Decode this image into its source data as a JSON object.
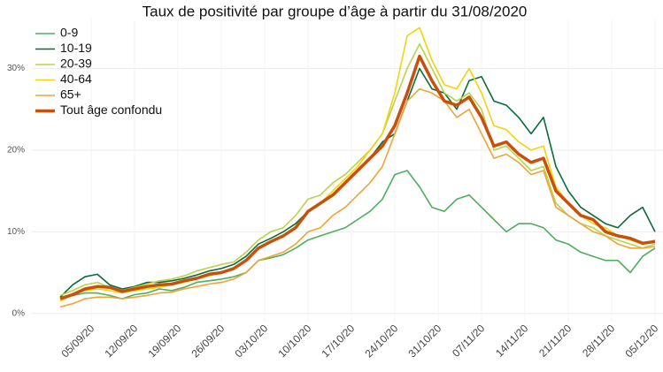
{
  "chart_data": {
    "type": "line",
    "title": "Taux de positivité par groupe d’âge à partir du 31/08/2020",
    "x": [
      "31/08/20",
      "02/09/20",
      "04/09/20",
      "06/09/20",
      "08/09/20",
      "10/09/20",
      "12/09/20",
      "14/09/20",
      "16/09/20",
      "18/09/20",
      "20/09/20",
      "22/09/20",
      "24/09/20",
      "26/09/20",
      "28/09/20",
      "30/09/20",
      "02/10/20",
      "04/10/20",
      "06/10/20",
      "08/10/20",
      "10/10/20",
      "12/10/20",
      "14/10/20",
      "16/10/20",
      "18/10/20",
      "20/10/20",
      "22/10/20",
      "24/10/20",
      "26/10/20",
      "28/10/20",
      "30/10/20",
      "01/11/20",
      "03/11/20",
      "05/11/20",
      "07/11/20",
      "09/11/20",
      "11/11/20",
      "13/11/20",
      "15/11/20",
      "17/11/20",
      "19/11/20",
      "21/11/20",
      "23/11/20",
      "25/11/20",
      "27/11/20",
      "29/11/20",
      "01/12/20",
      "03/12/20",
      "05/12/20"
    ],
    "series": [
      {
        "name": "0-9",
        "color": "#4daf5c",
        "width": 1.6,
        "values": [
          2,
          2.2,
          2.5,
          2.5,
          2.2,
          1.8,
          2.3,
          2.5,
          3,
          2.8,
          3.2,
          3.8,
          4,
          4.2,
          4.5,
          5,
          6.5,
          6.8,
          7.2,
          8,
          9,
          9.5,
          10,
          10.5,
          11.5,
          12.5,
          14,
          17,
          17.5,
          15.5,
          13,
          12.5,
          14,
          14.5,
          13,
          11.5,
          10,
          11,
          11,
          10.5,
          9,
          8.5,
          7.5,
          7,
          6.5,
          6.5,
          5,
          7,
          8
        ]
      },
      {
        "name": "10-19",
        "color": "#0b6b3a",
        "width": 1.6,
        "values": [
          2,
          3.5,
          4.5,
          4.8,
          3.5,
          3,
          3.3,
          3.8,
          3.8,
          4,
          4.3,
          4.7,
          5.2,
          5.5,
          6,
          7,
          8.5,
          9.2,
          10,
          11,
          12.5,
          13.5,
          14.5,
          16,
          17.5,
          19,
          21,
          22,
          26,
          30,
          27.5,
          27,
          25,
          28.5,
          29,
          26,
          25.5,
          24,
          22,
          24,
          18,
          15,
          13,
          12,
          11,
          10.5,
          12,
          13,
          10
        ]
      },
      {
        "name": "20-39",
        "color": "#b9d34a",
        "width": 1.6,
        "values": [
          2.2,
          2.8,
          3.5,
          3.8,
          3.2,
          2.8,
          3.2,
          3.6,
          4,
          4.2,
          4.6,
          5.2,
          5.6,
          6,
          6.3,
          7.5,
          9,
          10,
          10.5,
          12,
          14,
          14.5,
          16,
          17,
          18.5,
          20,
          22,
          26,
          30,
          33,
          30,
          27,
          26,
          27,
          25,
          20,
          20.5,
          19,
          17.5,
          18,
          13.5,
          12,
          11,
          10.5,
          9.5,
          9,
          8.5,
          8,
          8.5
        ]
      },
      {
        "name": "40-64",
        "color": "#f2d40c",
        "width": 1.6,
        "values": [
          1.5,
          2.3,
          2.8,
          3,
          2.8,
          2.5,
          2.8,
          3,
          3.2,
          3.5,
          3.8,
          4.2,
          4.6,
          5,
          5.5,
          6.5,
          8,
          8.8,
          9.5,
          10.5,
          12.5,
          13.5,
          15,
          16.5,
          18,
          20,
          22,
          27,
          34,
          35,
          31,
          28,
          27.5,
          30,
          27,
          23,
          22.5,
          21,
          20,
          20.5,
          15.5,
          13.5,
          12,
          11,
          10.5,
          9.5,
          9,
          8.5,
          9
        ]
      },
      {
        "name": "65+",
        "color": "#eea43a",
        "width": 1.6,
        "values": [
          0.8,
          1.2,
          1.8,
          2,
          2,
          1.8,
          2,
          2.2,
          2.5,
          2.6,
          3,
          3.3,
          3.6,
          3.8,
          4.2,
          5,
          6.5,
          7,
          7.5,
          8.5,
          10,
          10.5,
          12,
          13,
          14.5,
          16,
          18,
          22,
          26,
          27.5,
          27,
          26,
          24,
          25,
          22,
          19,
          19.5,
          18.5,
          17,
          17.5,
          13,
          12,
          11,
          10,
          9.5,
          8.5,
          8,
          8,
          8.2
        ]
      },
      {
        "name": "Tout âge confondu",
        "color": "#c8500a",
        "width": 3.5,
        "values": [
          1.8,
          2.3,
          3,
          3.3,
          3.2,
          2.7,
          3,
          3.3,
          3.5,
          3.6,
          4,
          4.3,
          4.8,
          5,
          5.5,
          6.5,
          8,
          8.8,
          9.5,
          10.5,
          12.5,
          13.5,
          14.5,
          16,
          17.5,
          19,
          20.5,
          23,
          27,
          31.5,
          28.5,
          26,
          25.5,
          26.5,
          24,
          20.5,
          21,
          19.5,
          18.5,
          19,
          15,
          13.5,
          12,
          11.5,
          10,
          9.5,
          9.2,
          8.6,
          8.8
        ]
      }
    ],
    "ylim": [
      -1,
      36
    ],
    "yticks": [
      {
        "value": 0,
        "label": "0%"
      },
      {
        "value": 10,
        "label": "10%"
      },
      {
        "value": 20,
        "label": "20%"
      },
      {
        "value": 30,
        "label": "30%"
      }
    ],
    "xticks": [
      "05/09/20",
      "12/09/20",
      "19/09/20",
      "26/09/20",
      "03/10/20",
      "10/10/20",
      "17/10/20",
      "24/10/20",
      "31/10/20",
      "07/11/20",
      "14/11/20",
      "21/11/20",
      "28/11/20",
      "05/12/20"
    ],
    "grid": true,
    "legend": "top-left"
  }
}
